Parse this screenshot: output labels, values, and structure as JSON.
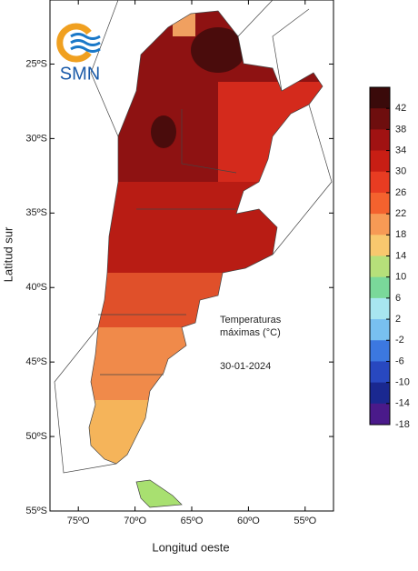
{
  "logo": {
    "text": "SMN"
  },
  "map": {
    "x_label": "Longitud oeste",
    "y_label": "Latitud sur",
    "xlim": [
      -77.5,
      -52.5
    ],
    "ylim": [
      -55,
      -20.7
    ],
    "xticks": [
      {
        "value": -75,
        "label": "75ºO"
      },
      {
        "value": -70,
        "label": "70ºO"
      },
      {
        "value": -65,
        "label": "65ºO"
      },
      {
        "value": -60,
        "label": "60ºO"
      },
      {
        "value": -55,
        "label": "55ºO"
      }
    ],
    "yticks": [
      {
        "value": -25,
        "label": "25ºS"
      },
      {
        "value": -30,
        "label": "30ºS"
      },
      {
        "value": -35,
        "label": "35ºS"
      },
      {
        "value": -40,
        "label": "40ºS"
      },
      {
        "value": -45,
        "label": "45ºS"
      },
      {
        "value": -50,
        "label": "50ºS"
      },
      {
        "value": -55,
        "label": "55ºS"
      }
    ],
    "annotation": [
      "Temperaturas",
      "máximas (°C)",
      "30-01-2024"
    ]
  },
  "colorbar": {
    "lim": [
      -18,
      46
    ],
    "ticks": [
      42,
      38,
      34,
      30,
      26,
      22,
      18,
      14,
      10,
      6,
      2,
      -2,
      -6,
      -10,
      -14,
      -18
    ],
    "colors": [
      "#3a0a0a",
      "#6e0e0e",
      "#a01212",
      "#c81e14",
      "#e83c22",
      "#f4622e",
      "#f79a55",
      "#f8c86e",
      "#b6e07a",
      "#7ad89a",
      "#a8e6f0",
      "#78c0f0",
      "#3c78e0",
      "#2848c0",
      "#1a2890",
      "#4a1a8a"
    ]
  }
}
